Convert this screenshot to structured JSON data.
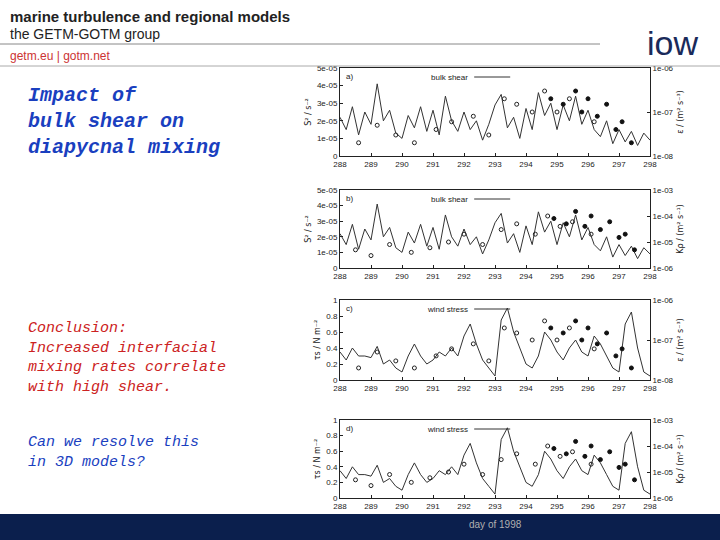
{
  "slide": {
    "header": {
      "title": "marine turbulence and regional models",
      "group": "the GETM-GOTM group",
      "links": "getm.eu | gotm.net",
      "logo": "iow"
    },
    "heading": [
      "Impact of",
      "bulk shear on",
      "diapycnal mixing"
    ],
    "conclusion": [
      "Conclusion:",
      "Increased interfacial",
      "mixing rates correlate",
      "with high shear."
    ],
    "question": [
      "Can we resolve this",
      "in 3D models?"
    ],
    "xlabel": "day of 1998"
  },
  "chart_data": [
    {
      "type": "line",
      "label": "a)",
      "grid": false,
      "log": "y2",
      "ylabel": "S² / s⁻²",
      "y2label": "ε / (m² s⁻³)",
      "xlim": [
        288,
        298
      ],
      "xticks": [
        288,
        289,
        290,
        291,
        292,
        293,
        294,
        295,
        296,
        297,
        298
      ],
      "ylim": [
        0,
        5e-05
      ],
      "yticks": [
        0,
        {
          "value": 1e-05,
          "label": "1e-05"
        },
        {
          "value": 2e-05,
          "label": "2e-05"
        },
        {
          "value": 3e-05,
          "label": "3e-05"
        },
        {
          "value": 4e-05,
          "label": "4e-05"
        },
        {
          "value": 5e-05,
          "label": "5e-05"
        }
      ],
      "y2lim": [
        1e-08,
        1e-06
      ],
      "y2ticks": [
        {
          "value": 1e-08,
          "label": "1e-08"
        },
        {
          "value": 1e-07,
          "label": "1e-07"
        },
        {
          "value": 1e-06,
          "label": "1e-06"
        }
      ],
      "x": [
        288,
        288.2,
        288.4,
        288.6,
        288.8,
        289,
        289.2,
        289.4,
        289.6,
        289.8,
        290,
        290.2,
        290.4,
        290.6,
        290.8,
        291,
        291.2,
        291.4,
        291.6,
        291.8,
        292,
        292.2,
        292.4,
        292.6,
        292.8,
        293,
        293.2,
        293.4,
        293.6,
        293.8,
        294,
        294.2,
        294.4,
        294.6,
        294.8,
        295,
        295.2,
        295.4,
        295.6,
        295.8,
        296,
        296.2,
        296.4,
        296.6,
        296.8,
        297,
        297.2,
        297.4,
        297.6,
        297.8,
        298
      ],
      "series": [
        {
          "name": "bulk shear",
          "type": "line",
          "line_style": "solid",
          "color": "#333333",
          "values": [
            2.2e-05,
            1.5e-05,
            2.8e-05,
            1.2e-05,
            2.5e-05,
            1.8e-05,
            4.1e-05,
            2e-05,
            2.6e-05,
            1.3e-05,
            1e-05,
            2.3e-05,
            1.6e-05,
            2.8e-05,
            1.4e-05,
            2.6e-05,
            1.2e-05,
            3.4e-05,
            2e-05,
            1.4e-05,
            2.5e-05,
            1.5e-05,
            2e-05,
            9e-06,
            1.8e-05,
            2.9e-05,
            3.5e-05,
            1.6e-05,
            2.2e-05,
            1e-05,
            2.7e-05,
            1.5e-05,
            3.6e-05,
            2.3e-05,
            3e-05,
            1.5e-05,
            2.9e-05,
            2e-05,
            3.4e-05,
            1.8e-05,
            2.6e-05,
            1.5e-05,
            1.1e-05,
            2e-05,
            7e-06,
            1.5e-05,
            8e-06,
            1.4e-05,
            6e-06,
            1.3e-05,
            9e-06
          ]
        },
        {
          "type": "scatter",
          "axis": "y2",
          "marker": "open circle",
          "color": "#222222",
          "x": [
            288.6,
            289.2,
            289.8,
            290.4,
            291.1,
            291.6,
            292.3,
            292.8,
            293.3,
            293.7,
            294.2,
            294.6,
            295.0,
            295.4,
            296.2
          ],
          "values": [
            2e-08,
            5e-08,
            3e-08,
            2e-08,
            4e-08,
            6e-08,
            8e-08,
            3e-08,
            2e-07,
            1.5e-07,
            1e-07,
            3e-07,
            1e-07,
            2e-07,
            6e-08
          ]
        },
        {
          "type": "scatter",
          "axis": "y2",
          "marker": "filled circle",
          "color": "#111111",
          "x": [
            294.8,
            295.2,
            295.6,
            295.8,
            296.0,
            296.3,
            296.6,
            296.9,
            297.1,
            297.4
          ],
          "values": [
            2e-07,
            1.5e-07,
            3e-07,
            1e-07,
            2e-07,
            8e-08,
            1.5e-07,
            4e-08,
            6e-08,
            2e-08
          ]
        }
      ]
    },
    {
      "type": "line",
      "label": "b)",
      "grid": false,
      "log": "y2",
      "ylabel": "S² / s⁻²",
      "y2label": "Kρ / (m² s⁻¹)",
      "xlim": [
        288,
        298
      ],
      "xticks": [
        288,
        289,
        290,
        291,
        292,
        293,
        294,
        295,
        296,
        297,
        298
      ],
      "ylim": [
        0,
        5e-05
      ],
      "yticks": [
        0,
        {
          "value": 1e-05,
          "label": "1e-05"
        },
        {
          "value": 2e-05,
          "label": "2e-05"
        },
        {
          "value": 3e-05,
          "label": "3e-05"
        },
        {
          "value": 4e-05,
          "label": "4e-05"
        },
        {
          "value": 5e-05,
          "label": "5e-05"
        }
      ],
      "y2lim": [
        1e-06,
        0.001
      ],
      "y2ticks": [
        {
          "value": 1e-06,
          "label": "1e-06"
        },
        {
          "value": 1e-05,
          "label": "1e-05"
        },
        {
          "value": 0.0001,
          "label": "1e-04"
        },
        {
          "value": 0.001,
          "label": "1e-03"
        }
      ],
      "x": [
        288,
        288.2,
        288.4,
        288.6,
        288.8,
        289,
        289.2,
        289.4,
        289.6,
        289.8,
        290,
        290.2,
        290.4,
        290.6,
        290.8,
        291,
        291.2,
        291.4,
        291.6,
        291.8,
        292,
        292.2,
        292.4,
        292.6,
        292.8,
        293,
        293.2,
        293.4,
        293.6,
        293.8,
        294,
        294.2,
        294.4,
        294.6,
        294.8,
        295,
        295.2,
        295.4,
        295.6,
        295.8,
        296,
        296.2,
        296.4,
        296.6,
        296.8,
        297,
        297.2,
        297.4,
        297.6,
        297.8,
        298
      ],
      "series": [
        {
          "name": "bulk shear",
          "type": "line",
          "line_style": "solid",
          "color": "#333333",
          "values": [
            2.2e-05,
            1.5e-05,
            2.8e-05,
            1.2e-05,
            2.5e-05,
            1.8e-05,
            4.1e-05,
            2e-05,
            2.6e-05,
            1.3e-05,
            1e-05,
            2.3e-05,
            1.6e-05,
            2.8e-05,
            1.4e-05,
            2.6e-05,
            1.2e-05,
            3.4e-05,
            2e-05,
            1.4e-05,
            2.5e-05,
            1.5e-05,
            2e-05,
            9e-06,
            1.8e-05,
            2.9e-05,
            3.5e-05,
            1.6e-05,
            2.2e-05,
            1e-05,
            2.7e-05,
            1.5e-05,
            3.6e-05,
            2.3e-05,
            3e-05,
            1.5e-05,
            2.9e-05,
            2e-05,
            3.4e-05,
            1.8e-05,
            2.6e-05,
            1.5e-05,
            1.1e-05,
            2e-05,
            7e-06,
            1.5e-05,
            8e-06,
            1.4e-05,
            6e-06,
            1.3e-05,
            9e-06
          ]
        },
        {
          "type": "scatter",
          "axis": "y2",
          "marker": "open circle",
          "color": "#222222",
          "x": [
            288.5,
            289.0,
            289.6,
            290.3,
            290.9,
            291.5,
            292.0,
            292.6,
            293.2,
            293.7,
            294.3,
            294.7,
            295.1,
            295.5,
            296.1
          ],
          "values": [
            5e-06,
            3e-06,
            8e-06,
            4e-06,
            6e-06,
            1e-05,
            2e-05,
            8e-06,
            3e-05,
            5e-05,
            2e-05,
            0.0001,
            4e-05,
            6e-05,
            2e-05
          ]
        },
        {
          "type": "scatter",
          "axis": "y2",
          "marker": "filled circle",
          "color": "#111111",
          "x": [
            294.9,
            295.3,
            295.6,
            295.9,
            296.1,
            296.4,
            296.7,
            297.0,
            297.2,
            297.5
          ],
          "values": [
            8e-05,
            5e-05,
            0.00015,
            4e-05,
            0.0001,
            3e-05,
            6e-05,
            1.5e-05,
            2e-05,
            5e-06
          ]
        }
      ]
    },
    {
      "type": "line",
      "label": "c)",
      "grid": false,
      "log": "y2",
      "ylabel": "τs / N m⁻²",
      "y2label": "ε / (m² s⁻³)",
      "xlim": [
        288,
        298
      ],
      "xticks": [
        288,
        289,
        290,
        291,
        292,
        293,
        294,
        295,
        296,
        297,
        298
      ],
      "ylim": [
        0,
        1
      ],
      "yticks": [
        0,
        0.2,
        0.4,
        0.6,
        0.8,
        1
      ],
      "y2lim": [
        1e-08,
        1e-06
      ],
      "y2ticks": [
        {
          "value": 1e-08,
          "label": "1e-08"
        },
        {
          "value": 1e-07,
          "label": "1e-07"
        },
        {
          "value": 1e-06,
          "label": "1e-06"
        }
      ],
      "x": [
        288,
        288.2,
        288.4,
        288.6,
        288.8,
        289,
        289.2,
        289.4,
        289.6,
        289.8,
        290,
        290.2,
        290.4,
        290.6,
        290.8,
        291,
        291.2,
        291.4,
        291.6,
        291.8,
        292,
        292.2,
        292.4,
        292.6,
        292.8,
        293,
        293.2,
        293.4,
        293.6,
        293.8,
        294,
        294.2,
        294.4,
        294.6,
        294.8,
        295,
        295.2,
        295.4,
        295.6,
        295.8,
        296,
        296.2,
        296.4,
        296.6,
        296.8,
        297,
        297.2,
        297.4,
        297.6,
        297.8,
        298
      ],
      "series": [
        {
          "name": "wind stress",
          "type": "line",
          "line_style": "solid",
          "color": "#333333",
          "values": [
            0.35,
            0.25,
            0.4,
            0.3,
            0.3,
            0.28,
            0.42,
            0.2,
            0.25,
            0.15,
            0.1,
            0.3,
            0.45,
            0.3,
            0.2,
            0.25,
            0.35,
            0.3,
            0.4,
            0.3,
            0.55,
            0.7,
            0.45,
            0.25,
            0.15,
            0.05,
            0.75,
            0.9,
            0.6,
            0.4,
            0.2,
            0.15,
            0.3,
            0.6,
            0.5,
            0.35,
            0.25,
            0.4,
            0.5,
            0.35,
            0.3,
            0.55,
            0.45,
            0.3,
            0.15,
            0.1,
            0.7,
            0.85,
            0.4,
            0.1,
            0.05
          ]
        },
        {
          "type": "scatter",
          "axis": "y2",
          "marker": "open circle",
          "color": "#222222",
          "x": [
            288.6,
            289.2,
            289.8,
            290.4,
            291.1,
            291.6,
            292.3,
            292.8,
            293.3,
            293.7,
            294.2,
            294.6,
            295.0,
            295.4,
            296.2
          ],
          "values": [
            2e-08,
            5e-08,
            3e-08,
            2e-08,
            4e-08,
            6e-08,
            8e-08,
            3e-08,
            2e-07,
            1.5e-07,
            1e-07,
            3e-07,
            1e-07,
            2e-07,
            6e-08
          ]
        },
        {
          "type": "scatter",
          "axis": "y2",
          "marker": "filled circle",
          "color": "#111111",
          "x": [
            294.8,
            295.2,
            295.6,
            295.8,
            296.0,
            296.3,
            296.6,
            296.9,
            297.1,
            297.4
          ],
          "values": [
            2e-07,
            1.5e-07,
            3e-07,
            1e-07,
            2e-07,
            8e-08,
            1.5e-07,
            4e-08,
            6e-08,
            2e-08
          ]
        }
      ]
    },
    {
      "type": "line",
      "label": "d)",
      "grid": false,
      "log": "y2",
      "ylabel": "τs / N m⁻²",
      "y2label": "Kρ / (m² s⁻¹)",
      "xlim": [
        288,
        298
      ],
      "xticks": [
        288,
        289,
        290,
        291,
        292,
        293,
        294,
        295,
        296,
        297,
        298
      ],
      "ylim": [
        0,
        1
      ],
      "yticks": [
        0,
        0.2,
        0.4,
        0.6,
        0.8,
        1
      ],
      "y2lim": [
        1e-06,
        0.001
      ],
      "y2ticks": [
        {
          "value": 1e-06,
          "label": "1e-06"
        },
        {
          "value": 1e-05,
          "label": "1e-05"
        },
        {
          "value": 0.0001,
          "label": "1e-04"
        },
        {
          "value": 0.001,
          "label": "1e-03"
        }
      ],
      "x": [
        288,
        288.2,
        288.4,
        288.6,
        288.8,
        289,
        289.2,
        289.4,
        289.6,
        289.8,
        290,
        290.2,
        290.4,
        290.6,
        290.8,
        291,
        291.2,
        291.4,
        291.6,
        291.8,
        292,
        292.2,
        292.4,
        292.6,
        292.8,
        293,
        293.2,
        293.4,
        293.6,
        293.8,
        294,
        294.2,
        294.4,
        294.6,
        294.8,
        295,
        295.2,
        295.4,
        295.6,
        295.8,
        296,
        296.2,
        296.4,
        296.6,
        296.8,
        297,
        297.2,
        297.4,
        297.6,
        297.8,
        298
      ],
      "series": [
        {
          "name": "wind stress",
          "type": "line",
          "line_style": "solid",
          "color": "#333333",
          "values": [
            0.35,
            0.25,
            0.4,
            0.3,
            0.3,
            0.28,
            0.42,
            0.2,
            0.25,
            0.15,
            0.1,
            0.3,
            0.45,
            0.3,
            0.2,
            0.25,
            0.35,
            0.3,
            0.4,
            0.3,
            0.55,
            0.7,
            0.45,
            0.25,
            0.15,
            0.05,
            0.75,
            0.9,
            0.6,
            0.4,
            0.2,
            0.15,
            0.3,
            0.6,
            0.5,
            0.35,
            0.25,
            0.4,
            0.5,
            0.35,
            0.3,
            0.55,
            0.45,
            0.3,
            0.15,
            0.1,
            0.7,
            0.85,
            0.4,
            0.1,
            0.05
          ]
        },
        {
          "type": "scatter",
          "axis": "y2",
          "marker": "open circle",
          "color": "#222222",
          "x": [
            288.5,
            289.0,
            289.6,
            290.3,
            290.9,
            291.5,
            292.0,
            292.6,
            293.2,
            293.7,
            294.3,
            294.7,
            295.1,
            295.5,
            296.1
          ],
          "values": [
            5e-06,
            3e-06,
            8e-06,
            4e-06,
            6e-06,
            1e-05,
            2e-05,
            8e-06,
            3e-05,
            5e-05,
            2e-05,
            0.0001,
            4e-05,
            6e-05,
            2e-05
          ]
        },
        {
          "type": "scatter",
          "axis": "y2",
          "marker": "filled circle",
          "color": "#111111",
          "x": [
            294.9,
            295.3,
            295.6,
            295.9,
            296.1,
            296.4,
            296.7,
            297.0,
            297.2,
            297.5
          ],
          "values": [
            8e-05,
            5e-05,
            0.00015,
            4e-05,
            0.0001,
            3e-05,
            6e-05,
            1.5e-05,
            2e-05,
            5e-06
          ]
        }
      ]
    }
  ]
}
